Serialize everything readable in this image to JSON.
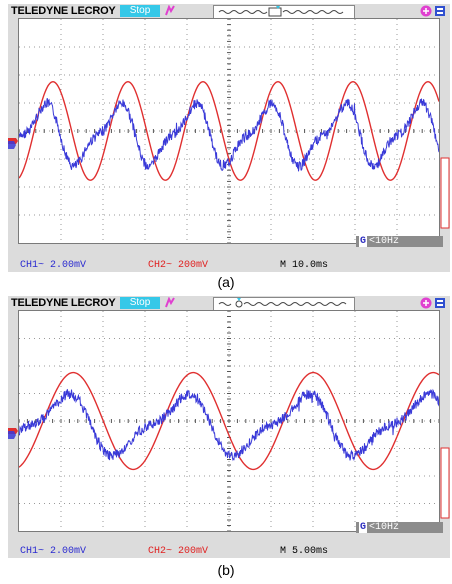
{
  "scopes": [
    {
      "brand": "TELEDYNE LECROY",
      "run_state": "Stop",
      "freq_readout": "<10Hz",
      "ch1_label": "CH1~ 2.00mV",
      "ch2_label": "CH2~ 200mV",
      "timebase_label": "M 10.0ms",
      "caption": "(a)",
      "ref_periods": 5.6,
      "ref_phase": 0.0,
      "meas_periods": 5.6,
      "meas_phase": 0.2
    },
    {
      "brand": "TELEDYNE LECROY",
      "run_state": "Stop",
      "freq_readout": "<10Hz",
      "ch1_label": "CH1~ 2.00mV",
      "ch2_label": "CH2~ 200mV",
      "timebase_label": "M 5.00ms",
      "caption": "(b)",
      "ref_periods": 3.5,
      "ref_phase": 0.0,
      "meas_periods": 3.5,
      "meas_phase": 0.15
    }
  ],
  "colors": {
    "ch1": "#3a3ad8",
    "ch2": "#e03030",
    "grid": "#9a9a9a",
    "bezel": "#dcdcdc"
  }
}
